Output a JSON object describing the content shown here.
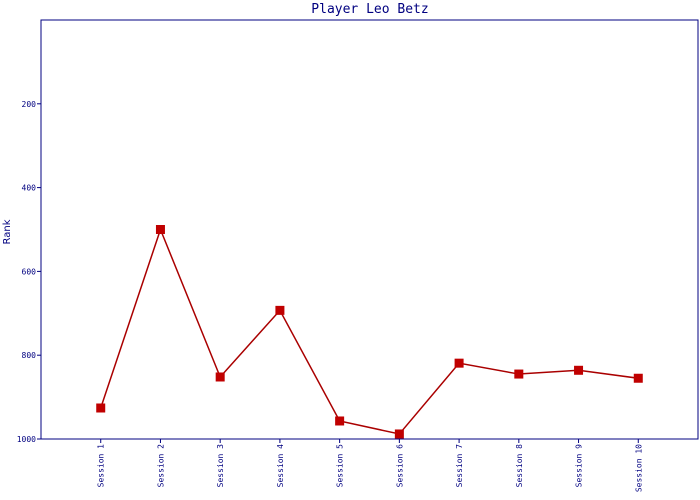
{
  "chart_data": {
    "type": "line",
    "title": "Player Leo Betz",
    "y_label": "Rank",
    "categories": [
      "Session 1",
      "Session 2",
      "Session 3",
      "Session 4",
      "Session 5",
      "Session 6",
      "Session 7",
      "Session 8",
      "Session 9",
      "Session 10"
    ],
    "series": [
      {
        "name": "Rank",
        "color": "#aa0000",
        "marker_color": "#c00000",
        "values": [
          926,
          500,
          852,
          693,
          957,
          988,
          819,
          845,
          836,
          855
        ]
      }
    ],
    "ylim": [
      0,
      1000
    ],
    "y_inverted": true,
    "yticks": [
      200,
      400,
      600,
      800,
      1000
    ],
    "axis_color": "#000080"
  }
}
